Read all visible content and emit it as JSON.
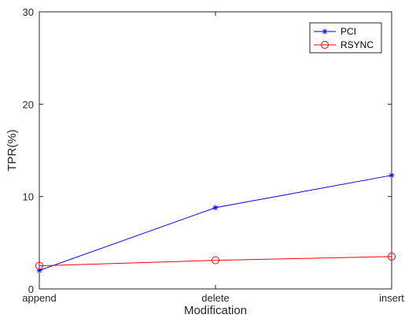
{
  "chart_data": {
    "type": "line",
    "categories": [
      "append",
      "delete",
      "insert"
    ],
    "series": [
      {
        "name": "PCI",
        "values": [
          2.0,
          8.8,
          12.3
        ],
        "color": "#0000ff",
        "marker": "asterisk"
      },
      {
        "name": "RSYNC",
        "values": [
          2.5,
          3.1,
          3.5
        ],
        "color": "#ff0000",
        "marker": "circle"
      }
    ],
    "xlabel": "Modification",
    "ylabel": "TPR(%)",
    "ylim": [
      0,
      30
    ],
    "yticks": [
      0,
      10,
      20,
      30
    ],
    "grid": false,
    "legend_position": "top-right"
  }
}
